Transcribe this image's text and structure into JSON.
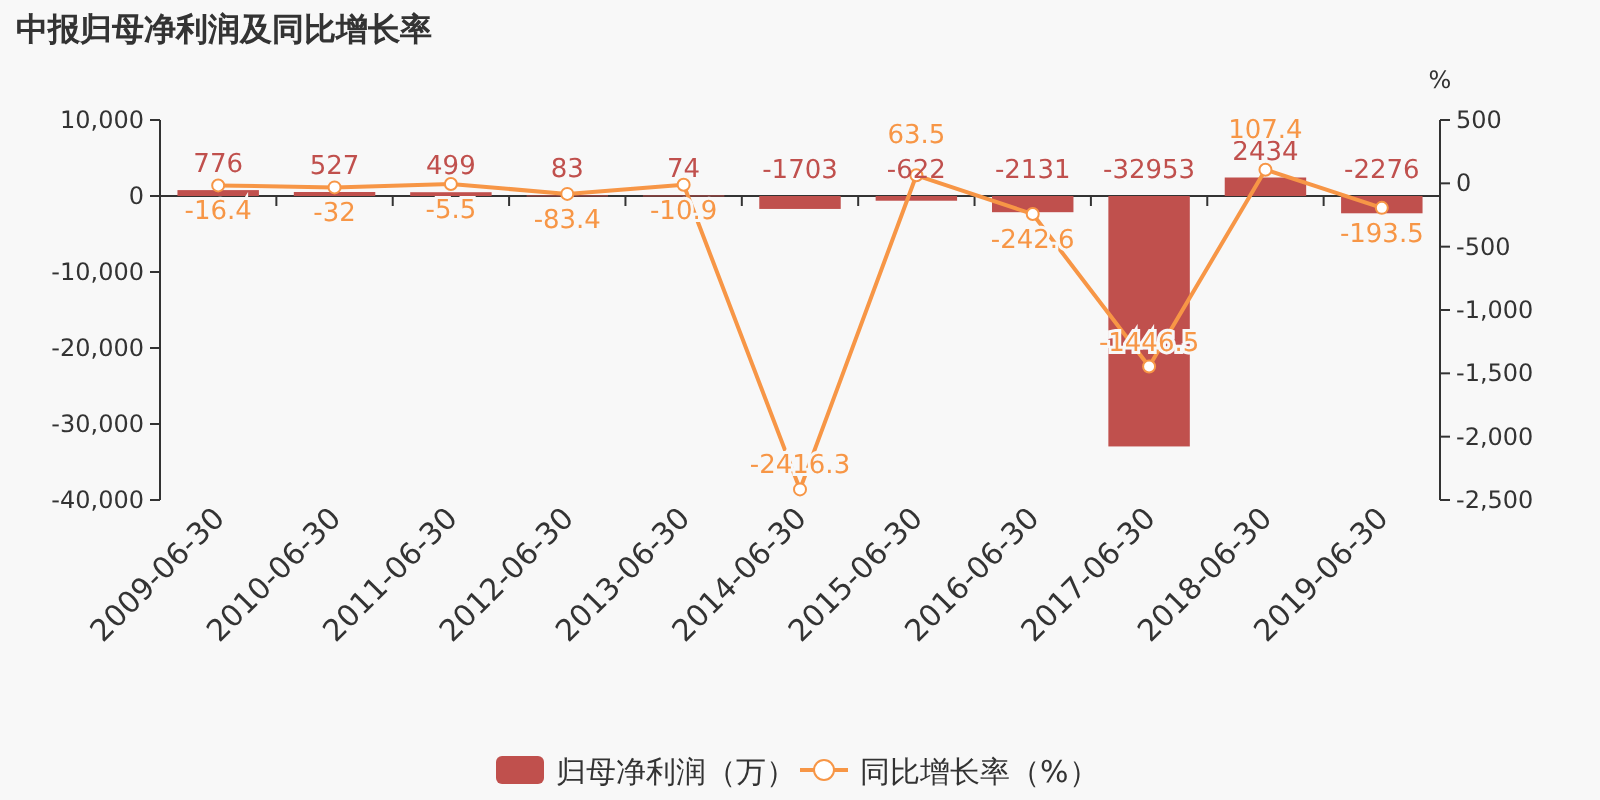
{
  "chart_data": {
    "type": "bar",
    "title": "中报归母净利润及同比增长率",
    "y2label": "%",
    "categories": [
      "2009-06-30",
      "2010-06-30",
      "2011-06-30",
      "2012-06-30",
      "2013-06-30",
      "2014-06-30",
      "2015-06-30",
      "2016-06-30",
      "2017-06-30",
      "2018-06-30",
      "2019-06-30"
    ],
    "series": [
      {
        "name": "归母净利润（万）",
        "color": "#c0504d",
        "values": [
          776,
          527,
          499,
          83,
          74,
          -1703,
          -622,
          -2131,
          -32953,
          2434,
          -2276
        ]
      },
      {
        "name": "同比增长率（%）",
        "type": "line",
        "axis": "y2",
        "color": "#f79646",
        "marker": "circle",
        "values": [
          -16.4,
          -32.0,
          -5.5,
          -83.4,
          -10.9,
          -2416.3,
          63.5,
          -242.6,
          -1446.5,
          107.4,
          -193.5
        ]
      }
    ],
    "ylim": [
      -40000,
      10000
    ],
    "yticks": [
      {
        "value": -40000,
        "label": "-40,000"
      },
      {
        "value": -30000,
        "label": "-30,000"
      },
      {
        "value": -20000,
        "label": "-20,000"
      },
      {
        "value": -10000,
        "label": "-10,000"
      },
      0,
      {
        "value": 10000,
        "label": "10,000"
      }
    ],
    "y2lim": [
      -2500,
      500
    ],
    "y2ticks": [
      {
        "value": -2500,
        "label": "-2,500"
      },
      {
        "value": -2000,
        "label": "-2,000"
      },
      {
        "value": -1500,
        "label": "-1,500"
      },
      {
        "value": -1000,
        "label": "-1,000"
      },
      -500,
      0,
      500
    ],
    "data_labels": true,
    "legend": "bottom"
  }
}
